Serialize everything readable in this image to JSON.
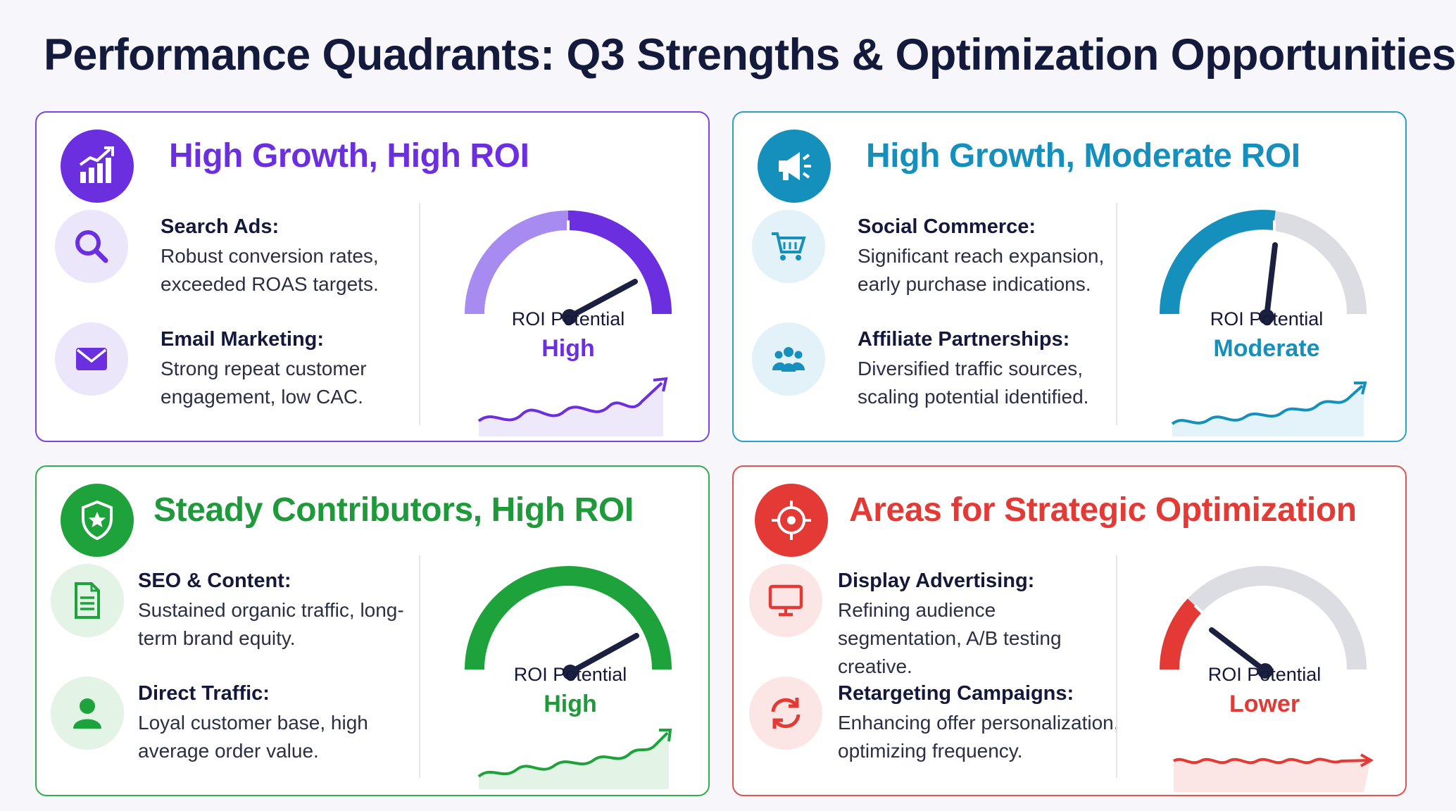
{
  "title": "Performance Quadrants: Q3 Strengths & Optimization Opportunities",
  "colors": {
    "purple": "#6c2fe0",
    "teal": "#1590bd",
    "green": "#1ea23c",
    "red": "#e43a36",
    "gauge_track": "#dcdde2",
    "needle": "#1b2040"
  },
  "quadrants": [
    {
      "title": "High Growth, High ROI",
      "icon": "bar-chart-growth-icon",
      "items": [
        {
          "icon": "magnifier-icon",
          "title": "Search Ads:",
          "desc": "Robust conversion rates, exceeded ROAS targets."
        },
        {
          "icon": "envelope-icon",
          "title": "Email Marketing:",
          "desc": "Strong repeat customer engagement, low CAC."
        }
      ],
      "roi_label": "ROI Potential",
      "roi_value": "High",
      "gauge_level": 0.85,
      "trend": "up"
    },
    {
      "title": "High Growth, Moderate ROI",
      "icon": "megaphone-icon",
      "items": [
        {
          "icon": "shopping-cart-icon",
          "title": "Social Commerce:",
          "desc": "Significant reach expansion, early purchase indications."
        },
        {
          "icon": "people-group-icon",
          "title": "Affiliate Partnerships:",
          "desc": "Diversified traffic sources, scaling potential identified."
        }
      ],
      "roi_label": "ROI Potential",
      "roi_value": "Moderate",
      "gauge_level": 0.55,
      "trend": "up"
    },
    {
      "title": "Steady Contributors, High ROI",
      "icon": "shield-star-icon",
      "items": [
        {
          "icon": "document-icon",
          "title": "SEO & Content:",
          "desc": "Sustained organic traffic, long-term brand equity."
        },
        {
          "icon": "person-icon",
          "title": "Direct Traffic:",
          "desc": "Loyal customer base, high average order value."
        }
      ],
      "roi_label": "ROI Potential",
      "roi_value": "High",
      "gauge_level": 0.82,
      "trend": "up"
    },
    {
      "title": "Areas for Strategic Optimization",
      "icon": "target-icon",
      "items": [
        {
          "icon": "monitor-icon",
          "title": "Display Advertising:",
          "desc": "Refining audience segmentation, A/B testing creative."
        },
        {
          "icon": "refresh-arrows-icon",
          "title": "Retargeting Campaigns:",
          "desc": "Enhancing offer personalization, optimizing frequency."
        }
      ],
      "roi_label": "ROI Potential",
      "roi_value": "Lower",
      "gauge_level": 0.25,
      "trend": "flat"
    }
  ]
}
